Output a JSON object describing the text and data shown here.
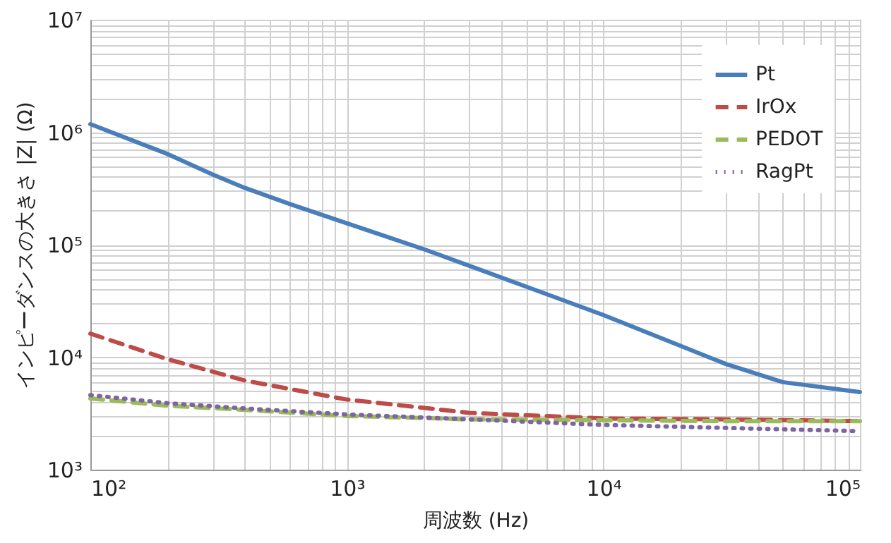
{
  "chart_data": {
    "type": "line",
    "xlabel": "周波数 (Hz)",
    "ylabel": "インピーダンスの大きさ |Z| (Ω)",
    "log": "xy",
    "xlim": [
      100,
      100000
    ],
    "ylim": [
      1000,
      10000000
    ],
    "xticks": [
      {
        "value": 100,
        "label": "10²"
      },
      {
        "value": 1000,
        "label": "10³"
      },
      {
        "value": 10000,
        "label": "10⁴"
      },
      {
        "value": 100000,
        "label": "10⁵"
      }
    ],
    "yticks": [
      {
        "value": 1000,
        "label": "10³"
      },
      {
        "value": 10000,
        "label": "10⁴"
      },
      {
        "value": 100000,
        "label": "10⁵"
      },
      {
        "value": 1000000,
        "label": "10⁶"
      },
      {
        "value": 10000000,
        "label": "10⁷"
      }
    ],
    "grid": true,
    "legend": "top right",
    "x": [
      100,
      200,
      400,
      1000,
      3000,
      10000,
      30000,
      100000
    ],
    "series": [
      {
        "name": "Pt",
        "color": "#4a7ebb",
        "line_style": "solid",
        "x": [
          100,
          200,
          300,
          400,
          600,
          1000,
          2000,
          3000,
          10000,
          20000,
          30000,
          50000,
          100000
        ],
        "values": [
          1180000,
          640000,
          420000,
          320000,
          230000,
          155000,
          91000,
          65000,
          23700,
          12600,
          8700,
          6000,
          4900
        ]
      },
      {
        "name": "IrOx",
        "color": "#be4b48",
        "line_style": "dashed",
        "values": [
          16200,
          9600,
          6200,
          4200,
          3200,
          2850,
          2800,
          2700
        ]
      },
      {
        "name": "PEDOT",
        "color": "#9bbb59",
        "line_style": "dashed",
        "values": [
          4300,
          3700,
          3400,
          3000,
          2800,
          2750,
          2700,
          2700
        ]
      },
      {
        "name": "RagPt",
        "color": "#7f64a2",
        "line_style": "dotted",
        "values": [
          4600,
          3900,
          3500,
          3100,
          2800,
          2500,
          2350,
          2200
        ]
      }
    ]
  }
}
